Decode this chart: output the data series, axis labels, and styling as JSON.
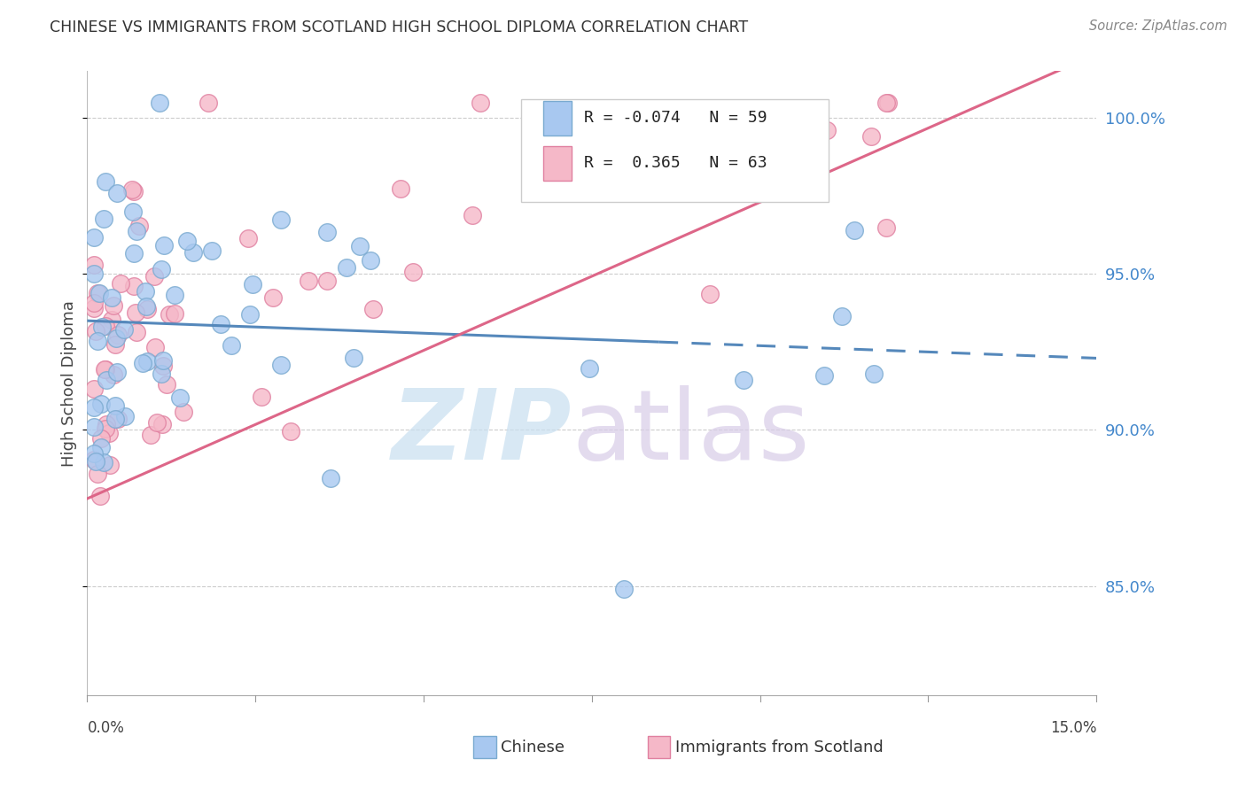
{
  "title": "CHINESE VS IMMIGRANTS FROM SCOTLAND HIGH SCHOOL DIPLOMA CORRELATION CHART",
  "source": "Source: ZipAtlas.com",
  "ylabel": "High School Diploma",
  "ytick_labels": [
    "100.0%",
    "95.0%",
    "90.0%",
    "85.0%"
  ],
  "ytick_values": [
    1.0,
    0.95,
    0.9,
    0.85
  ],
  "xlim": [
    0.0,
    0.15
  ],
  "ylim": [
    0.815,
    1.015
  ],
  "legend_blue_r": "-0.074",
  "legend_blue_n": "59",
  "legend_pink_r": "0.365",
  "legend_pink_n": "63",
  "blue_color": "#A8C8F0",
  "pink_color": "#F5B8C8",
  "blue_edge": "#7AAAD0",
  "pink_edge": "#E080A0",
  "blue_trend_color": "#5588BB",
  "pink_trend_color": "#DD6688"
}
